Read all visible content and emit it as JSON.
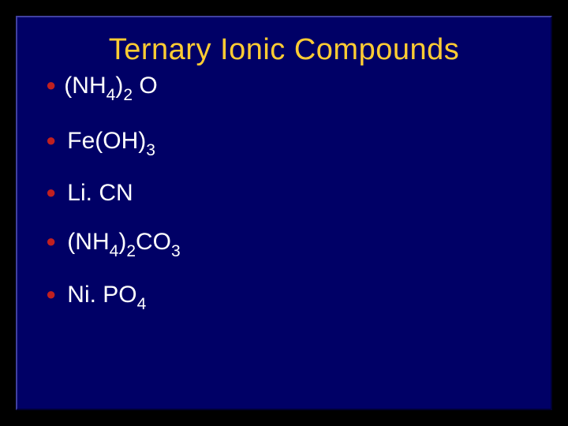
{
  "slide": {
    "title": "Ternary Ionic Compounds",
    "title_color": "#ffcc33",
    "title_fontsize": 38,
    "background_color": "#000066",
    "border_light": "#4040a0",
    "border_dark": "#000033",
    "bullet_color": "#c02020",
    "text_color": "#ffffff",
    "text_fontsize": 30,
    "items": [
      {
        "parts": [
          {
            "text": "(NH",
            "sub": false
          },
          {
            "text": "4",
            "sub": true
          },
          {
            "text": ")",
            "sub": false
          },
          {
            "text": "2",
            "sub": true
          },
          {
            "text": " O",
            "sub": false
          }
        ]
      },
      {
        "parts": [
          {
            "text": "Fe(OH)",
            "sub": false
          },
          {
            "text": "3",
            "sub": true
          }
        ]
      },
      {
        "parts": [
          {
            "text": "Li. CN",
            "sub": false
          }
        ]
      },
      {
        "parts": [
          {
            "text": "(NH",
            "sub": false
          },
          {
            "text": "4",
            "sub": true
          },
          {
            "text": ")",
            "sub": false
          },
          {
            "text": "2",
            "sub": true
          },
          {
            "text": "CO",
            "sub": false
          },
          {
            "text": "3",
            "sub": true
          }
        ]
      },
      {
        "parts": [
          {
            "text": "Ni. PO",
            "sub": false
          },
          {
            "text": "4",
            "sub": true
          }
        ]
      }
    ]
  }
}
